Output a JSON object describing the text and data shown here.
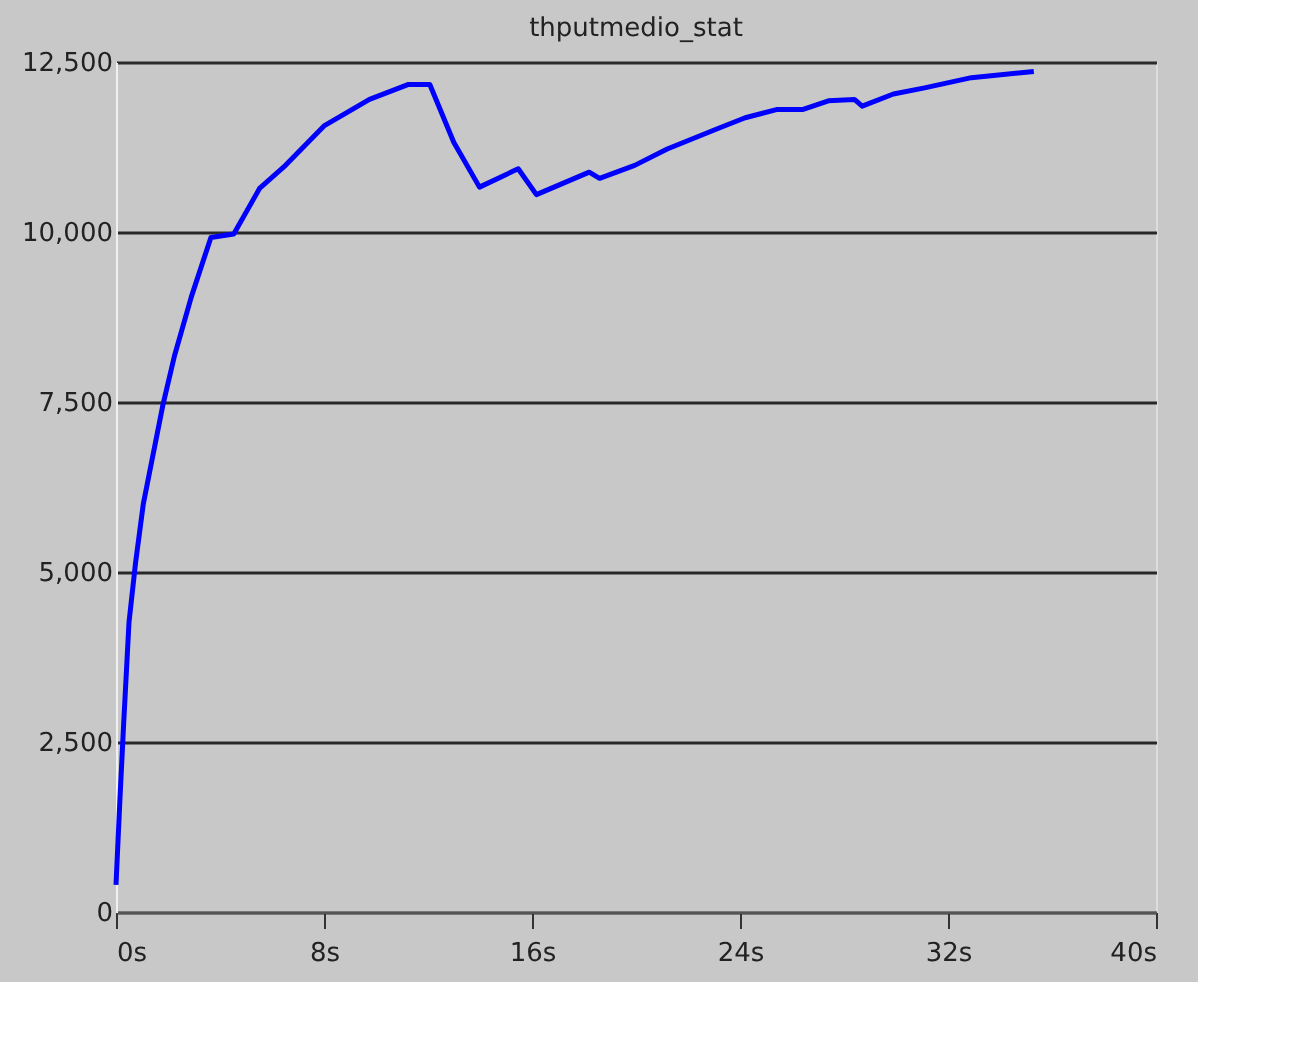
{
  "chart_data": {
    "type": "line",
    "title": "thputmedio_stat",
    "x": [
      0,
      0.15,
      0.3,
      0.5,
      0.75,
      1.05,
      1.35,
      1.8,
      2.25,
      2.9,
      3.65,
      4.53,
      5.52,
      6.52,
      8.0,
      9.75,
      11.25,
      12.07,
      12.99,
      13.98,
      15.47,
      16.17,
      18.2,
      18.6,
      19.95,
      21.2,
      23.2,
      24.2,
      25.4,
      26.4,
      27.4,
      28.4,
      28.7,
      29.9,
      31.1,
      32.9,
      35.3
    ],
    "series": [
      {
        "color": "#0000ff",
        "values": [
          400,
          1650,
          2810,
          4260,
          5130,
          6000,
          6580,
          7450,
          8180,
          9050,
          9920,
          9970,
          10640,
          10980,
          11560,
          11950,
          12170,
          12170,
          11320,
          10660,
          10930,
          10550,
          10880,
          10790,
          10980,
          11220,
          11530,
          11680,
          11800,
          11800,
          11930,
          11950,
          11850,
          12030,
          12120,
          12270,
          12360
        ]
      }
    ],
    "xlim": [
      0,
      40
    ],
    "xticks": [
      {
        "value": 0,
        "label": "0s"
      },
      {
        "value": 8,
        "label": "8s"
      },
      {
        "value": 16,
        "label": "16s"
      },
      {
        "value": 24,
        "label": "24s"
      },
      {
        "value": 32,
        "label": "32s"
      },
      {
        "value": 40,
        "label": "40s"
      }
    ],
    "ylim": [
      0,
      12500
    ],
    "yticks": [
      {
        "value": 0,
        "label": "0"
      },
      {
        "value": 2500,
        "label": "2,500"
      },
      {
        "value": 5000,
        "label": "5,000"
      },
      {
        "value": 7500,
        "label": "7,500"
      },
      {
        "value": 10000,
        "label": "10,000"
      },
      {
        "value": 12500,
        "label": "12,500"
      }
    ],
    "grid": "y",
    "marker": "none",
    "line_style": "solid"
  }
}
